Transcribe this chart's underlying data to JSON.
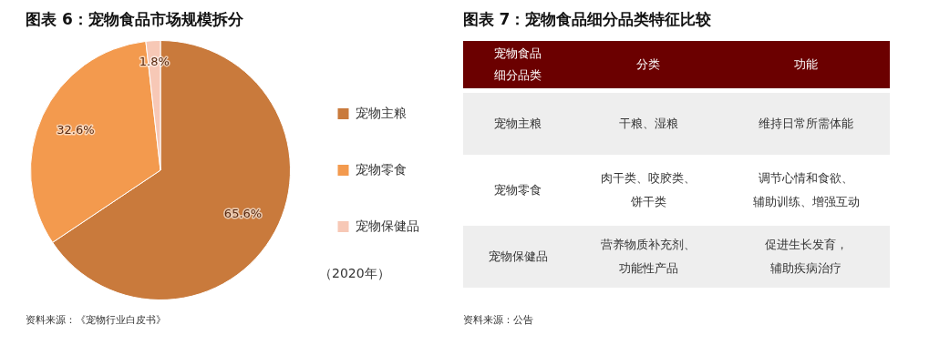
{
  "chart_data": [
    {
      "type": "pie",
      "title": "图表 6：宠物食品市场规模拆分",
      "categories": [
        "宠物主粮",
        "宠物零食",
        "宠物保健品"
      ],
      "values": [
        65.6,
        32.6,
        1.8
      ],
      "colors": [
        "#c97a3c",
        "#f39a4e",
        "#f7c8b6"
      ],
      "value_labels": [
        "65.6%",
        "32.6%",
        "1.8%"
      ],
      "legend": "right",
      "annotations": [
        "（2020年）",
        "资料来源：《宠物行业白皮书》"
      ]
    },
    {
      "type": "other",
      "title": "图表 7：宠物食品细分品类特征比较",
      "categories": [
        "宠物食品细分品类",
        "分类",
        "功能"
      ],
      "y_categories": [
        "宠物主粮",
        "宠物零食",
        "宠物保健品"
      ],
      "cell_labels": [
        [
          "干粮、湿粮",
          "维持日常所需体能"
        ],
        [
          "肉干类、咬胶类、饼干类",
          "调节心情和食欲、辅助训练、增强互动"
        ],
        [
          "营养物质补充剂、功能性产品",
          "促进生长发育，辅助疾病治疗"
        ]
      ],
      "annotations": [
        "资料来源：公告"
      ]
    }
  ]
}
